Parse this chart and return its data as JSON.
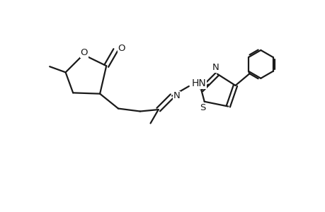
{
  "bg_color": "#ffffff",
  "line_color": "#1a1a1a",
  "line_width": 1.6,
  "font_size": 9.5,
  "figsize": [
    4.6,
    3.0
  ],
  "dpi": 100,
  "xlim": [
    0,
    9.2
  ],
  "ylim": [
    0,
    6.0
  ]
}
